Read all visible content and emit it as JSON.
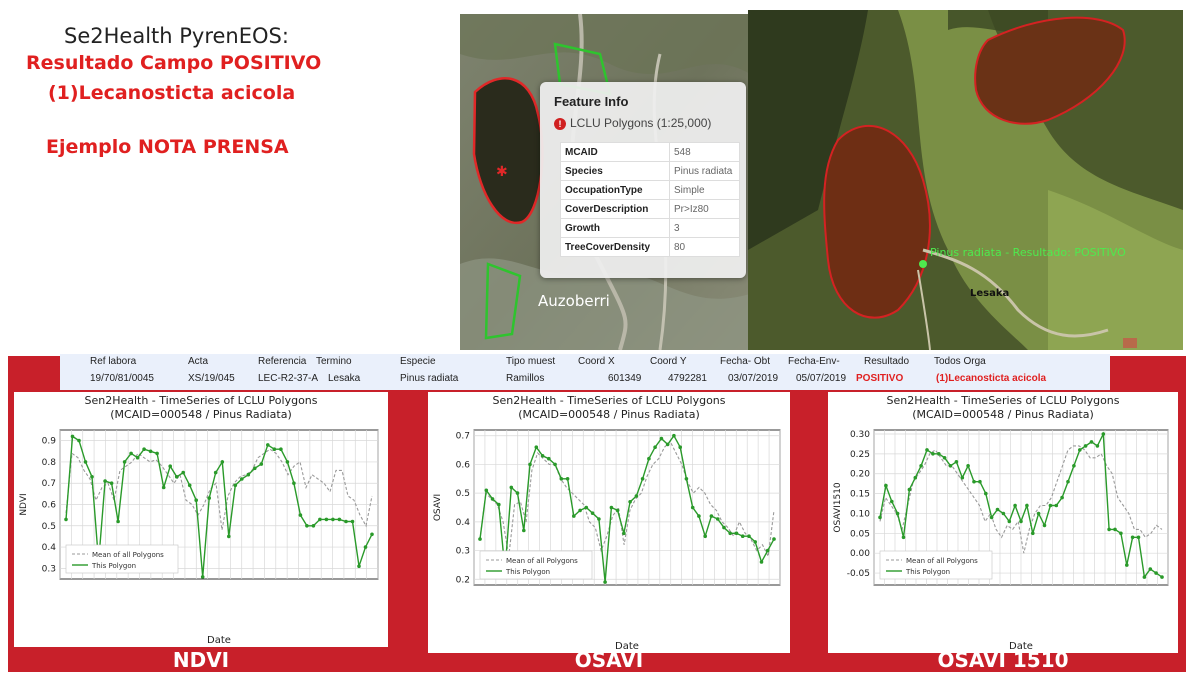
{
  "header": {
    "line1": "Se2Health PyrenEOS:",
    "line2": "Resultado Campo POSITIVO",
    "line3": "(1)Lecanosticta acicola",
    "line4": "Ejemplo NOTA PRENSA"
  },
  "map_left": {
    "place_label": "Auzoberri"
  },
  "map_right": {
    "point_label": "Pinus radiata - Resultado: POSITIVO",
    "place_label": "Lesaka"
  },
  "feature_info": {
    "title": "Feature Info",
    "layer": "LCLU Polygons (1:25,000)",
    "rows": [
      {
        "key": "MCAID",
        "value": "548"
      },
      {
        "key": "Species",
        "value": "Pinus radiata"
      },
      {
        "key": "OccupationType",
        "value": "Simple"
      },
      {
        "key": "CoverDescription",
        "value": "Pr>Iz80"
      },
      {
        "key": "Growth",
        "value": "3"
      },
      {
        "key": "TreeCoverDensity",
        "value": "80"
      }
    ]
  },
  "sample_table": {
    "headers": [
      "Ref labora",
      "Acta",
      "Referencia",
      "Termino",
      "Especie",
      "Tipo muest",
      "Coord X",
      "Coord Y",
      "Fecha- Obt",
      "Fecha-Env-",
      "Resultado",
      "Todos Orga"
    ],
    "values": [
      "19/70/81/0045",
      "XS/19/045",
      "LEC-R2-37-A",
      "Lesaka",
      "Pinus radiata",
      "Ramillos",
      "601349",
      "4792281",
      "03/07/2019",
      "05/07/2019",
      "POSITIVO",
      "(1)Lecanosticta acicola"
    ]
  },
  "colors": {
    "red": "#c8202a",
    "green": "#2a9a2a",
    "grey": "#9a9a9a"
  },
  "chart_data": [
    {
      "type": "line",
      "label": "NDVI",
      "title": "Sen2Health - TimeSeries of LCLU Polygons",
      "subtitle": "(MCAID=000548 / Pinus Radiata)",
      "xlabel": "Date",
      "ylabel": "NDVI",
      "ylim": [
        0.25,
        0.95
      ],
      "yticks": [
        0.3,
        0.4,
        0.5,
        0.6,
        0.7,
        0.8,
        0.9
      ],
      "grid": true,
      "legend_position": "bottom-left",
      "series": [
        {
          "name": "Mean of all Polygons",
          "style": "dashed",
          "values": [
            0.56,
            0.84,
            0.82,
            0.76,
            0.72,
            0.62,
            0.68,
            0.7,
            0.62,
            0.76,
            0.78,
            0.8,
            0.84,
            0.82,
            0.8,
            0.81,
            0.78,
            0.74,
            0.7,
            0.74,
            0.62,
            0.6,
            0.55,
            0.6,
            0.67,
            0.7,
            0.48,
            0.64,
            0.7,
            0.73,
            0.74,
            0.76,
            0.82,
            0.84,
            0.86,
            0.84,
            0.8,
            0.74,
            0.78,
            0.8,
            0.68,
            0.74,
            0.72,
            0.7,
            0.66,
            0.76,
            0.76,
            0.64,
            0.62,
            0.55,
            0.5,
            0.64
          ]
        },
        {
          "name": "This Polygon",
          "style": "solid",
          "values": [
            0.53,
            0.92,
            0.9,
            0.8,
            0.73,
            0.33,
            0.71,
            0.7,
            0.52,
            0.8,
            0.84,
            0.82,
            0.86,
            0.85,
            0.84,
            0.68,
            0.78,
            0.73,
            0.75,
            0.69,
            0.62,
            0.26,
            0.63,
            0.75,
            0.8,
            0.45,
            0.69,
            0.72,
            0.74,
            0.77,
            0.79,
            0.88,
            0.86,
            0.86,
            0.8,
            0.7,
            0.55,
            0.5,
            0.5,
            0.53,
            0.53,
            0.53,
            0.53,
            0.52,
            0.52,
            0.31,
            0.4,
            0.46
          ]
        }
      ]
    },
    {
      "type": "line",
      "label": "OSAVI",
      "title": "Sen2Health - TimeSeries of LCLU Polygons",
      "subtitle": "(MCAID=000548 / Pinus Radiata)",
      "xlabel": "Date",
      "ylabel": "OSAVI",
      "ylim": [
        0.18,
        0.72
      ],
      "yticks": [
        0.2,
        0.3,
        0.4,
        0.5,
        0.6,
        0.7
      ],
      "grid": true,
      "legend_position": "bottom-left",
      "series": [
        {
          "name": "Mean of all Polygons",
          "style": "dashed",
          "values": [
            0.34,
            0.5,
            0.48,
            0.46,
            0.4,
            0.28,
            0.46,
            0.47,
            0.4,
            0.58,
            0.64,
            0.62,
            0.6,
            0.6,
            0.55,
            0.52,
            0.5,
            0.48,
            0.46,
            0.4,
            0.38,
            0.3,
            0.35,
            0.42,
            0.45,
            0.32,
            0.44,
            0.48,
            0.5,
            0.56,
            0.6,
            0.62,
            0.66,
            0.68,
            0.64,
            0.6,
            0.54,
            0.5,
            0.52,
            0.5,
            0.46,
            0.44,
            0.4,
            0.38,
            0.35,
            0.4,
            0.36,
            0.34,
            0.3,
            0.32,
            0.28,
            0.44
          ]
        },
        {
          "name": "This Polygon",
          "style": "solid",
          "values": [
            0.34,
            0.51,
            0.48,
            0.46,
            0.23,
            0.52,
            0.5,
            0.37,
            0.6,
            0.66,
            0.63,
            0.62,
            0.6,
            0.55,
            0.55,
            0.42,
            0.44,
            0.45,
            0.43,
            0.41,
            0.19,
            0.45,
            0.44,
            0.36,
            0.47,
            0.49,
            0.55,
            0.62,
            0.66,
            0.69,
            0.67,
            0.7,
            0.66,
            0.55,
            0.45,
            0.42,
            0.35,
            0.42,
            0.41,
            0.38,
            0.36,
            0.36,
            0.35,
            0.35,
            0.33,
            0.26,
            0.3,
            0.34
          ]
        }
      ]
    },
    {
      "type": "line",
      "label": "OSAVI 1510",
      "title": "Sen2Health - TimeSeries of LCLU Polygons",
      "subtitle": "(MCAID=000548 / Pinus Radiata)",
      "xlabel": "Date",
      "ylabel": "OSAVI1510",
      "ylim": [
        -0.08,
        0.31
      ],
      "yticks": [
        -0.05,
        0.0,
        0.05,
        0.1,
        0.15,
        0.2,
        0.25,
        0.3
      ],
      "grid": true,
      "legend_position": "bottom-left",
      "series": [
        {
          "name": "Mean of all Polygons",
          "style": "dashed",
          "values": [
            0.08,
            0.14,
            0.12,
            0.1,
            0.06,
            0.12,
            0.18,
            0.2,
            0.22,
            0.25,
            0.26,
            0.24,
            0.22,
            0.22,
            0.2,
            0.18,
            0.16,
            0.14,
            0.12,
            0.08,
            0.1,
            0.06,
            0.04,
            0.07,
            0.06,
            0.08,
            0.0,
            0.06,
            0.1,
            0.12,
            0.12,
            0.14,
            0.18,
            0.22,
            0.26,
            0.27,
            0.27,
            0.26,
            0.24,
            0.24,
            0.25,
            0.22,
            0.2,
            0.14,
            0.12,
            0.1,
            0.06,
            0.06,
            0.04,
            0.05,
            0.07,
            0.06
          ]
        },
        {
          "name": "This Polygon",
          "style": "solid",
          "values": [
            0.09,
            0.17,
            0.13,
            0.1,
            0.04,
            0.16,
            0.19,
            0.22,
            0.26,
            0.25,
            0.25,
            0.24,
            0.22,
            0.23,
            0.19,
            0.22,
            0.18,
            0.18,
            0.15,
            0.09,
            0.11,
            0.1,
            0.08,
            0.12,
            0.08,
            0.12,
            0.05,
            0.1,
            0.07,
            0.12,
            0.12,
            0.14,
            0.18,
            0.22,
            0.26,
            0.27,
            0.28,
            0.27,
            0.3,
            0.06,
            0.06,
            0.05,
            -0.03,
            0.04,
            0.04,
            -0.06,
            -0.04,
            -0.05,
            -0.06
          ]
        }
      ]
    }
  ]
}
